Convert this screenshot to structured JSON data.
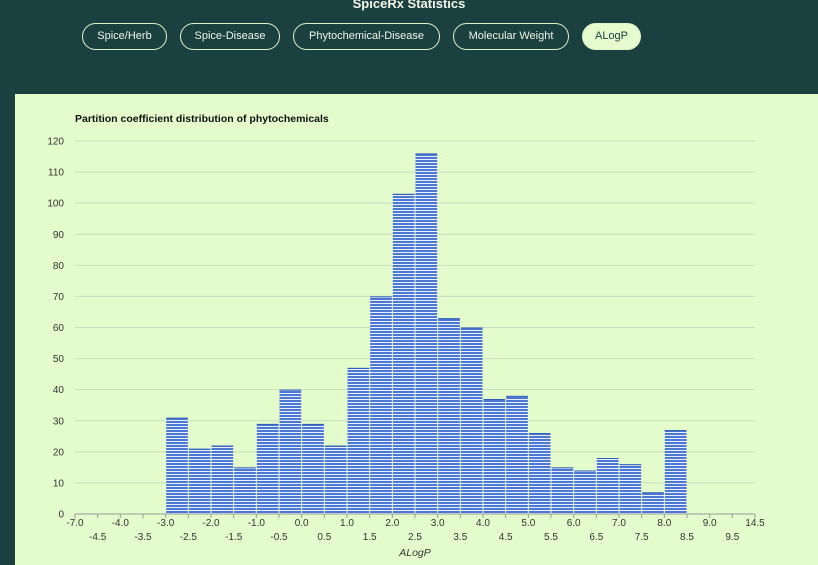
{
  "page": {
    "heading": "SpiceRx Statistics"
  },
  "tabs": [
    {
      "label": "Spice/Herb",
      "active": false
    },
    {
      "label": "Spice-Disease",
      "active": false
    },
    {
      "label": "Phytochemical-Disease",
      "active": false
    },
    {
      "label": "Molecular Weight",
      "active": false
    },
    {
      "label": "ALogP",
      "active": true
    }
  ],
  "colors": {
    "bar_fill": "#4a78d2",
    "bar_line": "#e8f0ff",
    "gridline": "#c9dcc0",
    "panel_background": "#e4fccc",
    "page_background": "#1b4040"
  },
  "chart_data": {
    "type": "bar",
    "title": "Partition coefficient distribution of phytochemicals",
    "xlabel": "ALogP",
    "ylabel": "",
    "ylim": [
      0,
      120
    ],
    "y_ticks": [
      0,
      10,
      20,
      30,
      40,
      50,
      60,
      70,
      80,
      90,
      100,
      110,
      120
    ],
    "grid": true,
    "x_tick_labels_row1": [
      "-7.0",
      "-4.0",
      "-3.0",
      "-2.0",
      "-1.0",
      "0.0",
      "1.0",
      "2.0",
      "3.0",
      "4.0",
      "5.0",
      "6.0",
      "7.0",
      "8.0",
      "9.0",
      "14.5"
    ],
    "x_tick_labels_row2": [
      "-4.5",
      "-3.5",
      "-2.5",
      "-1.5",
      "-0.5",
      "0.5",
      "1.5",
      "2.5",
      "3.5",
      "4.5",
      "5.5",
      "6.5",
      "7.5",
      "8.5",
      "9.5"
    ],
    "categories": [
      "-7.0",
      "-4.5",
      "-4.0",
      "-3.5",
      "-3.0",
      "-2.5",
      "-2.0",
      "-1.5",
      "-1.0",
      "-0.5",
      "0.0",
      "0.5",
      "1.0",
      "1.5",
      "2.0",
      "2.5",
      "3.0",
      "3.5",
      "4.0",
      "4.5",
      "5.0",
      "5.5",
      "6.0",
      "6.5",
      "7.0",
      "7.5",
      "8.0",
      "8.5",
      "9.0",
      "9.5"
    ],
    "values": [
      0,
      0,
      0,
      0,
      31,
      21,
      22,
      15,
      29,
      40,
      29,
      22,
      47,
      70,
      103,
      116,
      63,
      60,
      37,
      38,
      26,
      15,
      14,
      18,
      16,
      7,
      27,
      0,
      0,
      0
    ]
  }
}
